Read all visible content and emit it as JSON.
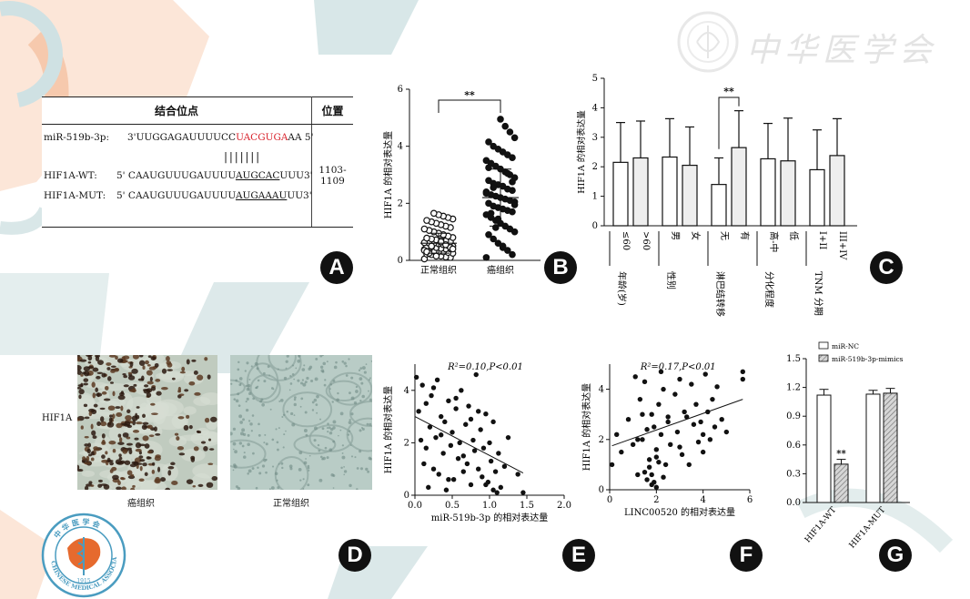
{
  "logo": {
    "seal_text": "中 华 医 学 会",
    "seal_ring": "CHINESE MEDICAL ASSOCIATION",
    "seal_year": "1915",
    "title": "中华医学会"
  },
  "panelA": {
    "badge": "A",
    "header_site": "结合位点",
    "header_pos": "位置",
    "rows": [
      {
        "label": "miR-519b-3p:",
        "pre": "3'UUGGAGAUUUUCC",
        "highlight": "UACGUGA",
        "post": "AA 5'"
      },
      {
        "label": "HIF1A-WT:",
        "pre": "5' CAAUGUUUGAUUUU",
        "highlight": "AUGCAC",
        "post": "UUU3'"
      },
      {
        "label": "HIF1A-MUT:",
        "pre": "5' CAAUGUUUGAUUUU",
        "highlight": "AUGAAAU",
        "post": "UU3'"
      }
    ],
    "pairing": "| | | | | | |",
    "position": "1103-1109"
  },
  "panelB": {
    "badge": "B",
    "sig": "**",
    "ylabel": "HIF1A 的相对表达量"
  },
  "panelC": {
    "badge": "C",
    "sig": "**",
    "ylabel": "HIF1A 的相对表达量",
    "groups": [
      {
        "name": "年龄(岁)",
        "sub": [
          "≤60",
          ">60"
        ]
      },
      {
        "name": "性别",
        "sub": [
          "男",
          "女"
        ]
      },
      {
        "name": "淋巴结转移",
        "sub": [
          "无",
          "有"
        ]
      },
      {
        "name": "分化程度",
        "sub": [
          "高-中",
          "低"
        ]
      },
      {
        "name": "TNM 分期",
        "sub": [
          "I+II",
          "III+IV"
        ]
      }
    ]
  },
  "panelD": {
    "badge": "D",
    "row_label": "HIF1A",
    "captions": [
      "癌组织",
      "正常组织"
    ]
  },
  "panelE": {
    "badge": "E",
    "annot": "R²=0.10,P<0.01",
    "xlabel": "miR-519b-3p 的相对表达量",
    "ylabel": "HIF1A 的相对表达量"
  },
  "panelF": {
    "badge": "F",
    "annot": "R²=0.17,P<0.01",
    "xlabel": "LINC00520 的相对表达量",
    "ylabel": "HIF1A 的相对表达量"
  },
  "panelG": {
    "badge": "G",
    "sig": "**",
    "legend": [
      "miR-NC",
      "miR-519b-3p-mimics"
    ]
  },
  "colors": {
    "bg_orange": "#fbe4d6",
    "bg_teal": "#cfe1e3",
    "highlight_red": "#d8202a",
    "ihc_bg": "#b8c8c2",
    "ihc_stain": "#3a2414"
  },
  "chart_data": [
    {
      "type": "scatter",
      "panel": "B",
      "categories": [
        "正常组织",
        "癌组织"
      ],
      "ylim": [
        0,
        6
      ],
      "yticks": [
        0,
        2,
        4,
        6
      ],
      "means": [
        0.6,
        2.2
      ],
      "sd": [
        0.35,
        1.0
      ],
      "series": [
        {
          "name": "正常组织",
          "values": [
            0.05,
            0.1,
            0.12,
            0.15,
            0.18,
            0.2,
            0.22,
            0.25,
            0.28,
            0.3,
            0.3,
            0.32,
            0.35,
            0.38,
            0.4,
            0.4,
            0.42,
            0.45,
            0.48,
            0.5,
            0.5,
            0.52,
            0.55,
            0.58,
            0.6,
            0.6,
            0.62,
            0.65,
            0.68,
            0.7,
            0.72,
            0.75,
            0.78,
            0.8,
            0.85,
            0.9,
            0.95,
            1.0,
            1.05,
            1.1,
            1.15,
            1.2,
            1.25,
            1.3,
            1.35,
            1.4,
            1.45,
            1.5,
            1.55,
            1.6,
            1.65,
            0.25,
            0.35,
            0.45,
            0.55,
            0.65,
            0.15,
            0.5,
            0.3,
            0.4
          ]
        },
        {
          "name": "癌组织",
          "values": [
            0.1,
            0.2,
            0.35,
            0.5,
            0.6,
            0.75,
            0.9,
            1.0,
            1.1,
            1.2,
            1.3,
            1.4,
            1.5,
            1.6,
            1.7,
            1.75,
            1.8,
            1.85,
            1.9,
            2.0,
            2.05,
            2.1,
            2.15,
            2.2,
            2.25,
            2.3,
            2.4,
            2.45,
            2.5,
            2.6,
            2.65,
            2.7,
            2.8,
            2.9,
            3.0,
            3.1,
            3.2,
            3.3,
            3.4,
            3.5,
            3.6,
            3.7,
            3.8,
            3.9,
            4.0,
            4.15,
            4.3,
            4.5,
            4.7,
            4.95,
            1.15,
            1.65,
            2.35,
            2.75,
            3.05,
            0.45,
            1.45,
            2.55,
            3.25,
            1.95
          ]
        }
      ]
    },
    {
      "type": "bar",
      "panel": "C",
      "ylim": [
        0,
        5
      ],
      "yticks": [
        0,
        1,
        2,
        3,
        4,
        5
      ],
      "categories": [
        "≤60",
        ">60",
        "男",
        "女",
        "无",
        "有",
        "高-中",
        "低",
        "I+II",
        "III+IV"
      ],
      "values": [
        2.15,
        2.3,
        2.33,
        2.05,
        1.4,
        2.65,
        2.27,
        2.2,
        1.9,
        2.38
      ],
      "errors": [
        1.35,
        1.25,
        1.3,
        1.3,
        0.9,
        1.25,
        1.2,
        1.45,
        1.35,
        1.25
      ]
    },
    {
      "type": "scatter",
      "panel": "E",
      "xlim": [
        0,
        2.0
      ],
      "xticks": [
        0.0,
        0.5,
        1.0,
        1.5,
        2.0
      ],
      "ylim": [
        0,
        5
      ],
      "yticks": [
        0,
        2,
        4
      ],
      "annotation": "R²=0.10,P<0.01",
      "fit": {
        "x": [
          0.0,
          1.45
        ],
        "y": [
          3.0,
          0.85
        ]
      },
      "x": [
        0.02,
        0.05,
        0.08,
        0.1,
        0.12,
        0.15,
        0.18,
        0.2,
        0.22,
        0.25,
        0.28,
        0.3,
        0.32,
        0.35,
        0.38,
        0.4,
        0.42,
        0.45,
        0.48,
        0.5,
        0.52,
        0.55,
        0.58,
        0.6,
        0.62,
        0.65,
        0.68,
        0.7,
        0.72,
        0.75,
        0.78,
        0.8,
        0.82,
        0.85,
        0.88,
        0.9,
        0.92,
        0.95,
        0.98,
        1.0,
        1.02,
        1.05,
        1.08,
        1.1,
        1.12,
        1.15,
        1.2,
        1.25,
        1.38,
        1.45,
        0.15,
        0.35,
        0.55,
        0.75,
        0.95,
        0.25,
        0.45,
        0.65,
        0.85,
        1.05
      ],
      "y": [
        4.5,
        3.2,
        2.1,
        4.2,
        1.2,
        3.5,
        0.3,
        2.6,
        3.8,
        1.0,
        2.2,
        4.4,
        0.8,
        3.0,
        1.6,
        2.8,
        0.2,
        3.6,
        1.9,
        2.4,
        0.6,
        3.3,
        1.4,
        2.0,
        4.0,
        0.9,
        2.7,
        1.2,
        3.4,
        0.4,
        2.1,
        1.7,
        4.6,
        1.0,
        2.5,
        0.7,
        1.8,
        3.1,
        0.5,
        2.0,
        1.3,
        2.8,
        0.9,
        0.1,
        1.6,
        0.3,
        1.1,
        2.2,
        0.8,
        0.1,
        1.8,
        2.3,
        3.7,
        2.9,
        0.4,
        4.1,
        0.6,
        1.5,
        3.2,
        0.2
      ]
    },
    {
      "type": "scatter",
      "panel": "F",
      "xlim": [
        0,
        6
      ],
      "xticks": [
        0,
        2,
        4,
        6
      ],
      "ylim": [
        0,
        5
      ],
      "yticks": [
        0,
        2,
        4
      ],
      "annotation": "R²=0.17,P<0.01",
      "fit": {
        "x": [
          0.1,
          5.7
        ],
        "y": [
          1.75,
          3.6
        ]
      },
      "x": [
        0.1,
        0.3,
        0.5,
        0.8,
        1.0,
        1.1,
        1.2,
        1.3,
        1.4,
        1.5,
        1.6,
        1.7,
        1.8,
        1.8,
        1.9,
        2.0,
        2.0,
        2.1,
        2.2,
        2.3,
        2.4,
        2.5,
        2.6,
        2.8,
        2.9,
        3.0,
        3.1,
        3.2,
        3.3,
        3.4,
        3.5,
        3.6,
        3.7,
        3.8,
        3.9,
        4.0,
        4.1,
        4.2,
        4.3,
        4.4,
        4.5,
        4.6,
        4.8,
        5.0,
        5.7,
        5.7,
        1.5,
        1.7,
        1.9,
        2.1,
        2.3,
        1.4,
        1.6,
        2.0,
        2.2,
        1.2,
        3.0,
        4.0,
        2.5,
        1.8
      ],
      "y": [
        1.0,
        2.2,
        1.5,
        2.8,
        1.8,
        4.5,
        0.6,
        3.6,
        2.0,
        4.3,
        0.4,
        1.2,
        3.0,
        0.2,
        2.5,
        1.6,
        0.1,
        3.4,
        2.2,
        4.0,
        1.0,
        2.7,
        1.8,
        3.8,
        2.3,
        4.4,
        1.4,
        3.1,
        2.9,
        1.0,
        4.2,
        2.6,
        3.4,
        1.9,
        2.7,
        2.2,
        4.6,
        3.1,
        2.0,
        3.6,
        2.5,
        4.1,
        2.8,
        2.3,
        4.7,
        4.4,
        0.7,
        0.9,
        0.3,
        1.1,
        0.5,
        3.0,
        2.4,
        1.3,
        4.7,
        2.0,
        1.7,
        1.5,
        2.9,
        0.6
      ]
    },
    {
      "type": "bar",
      "panel": "G",
      "ylim": [
        0,
        1.5
      ],
      "yticks": [
        0.0,
        0.3,
        0.6,
        0.9,
        1.2,
        1.5
      ],
      "categories": [
        "HIF1A-WT",
        "HIF1A-MUT"
      ],
      "series": [
        {
          "name": "miR-NC",
          "values": [
            1.12,
            1.13
          ],
          "errors": [
            0.06,
            0.04
          ]
        },
        {
          "name": "miR-519b-3p-mimics",
          "values": [
            0.4,
            1.14
          ],
          "errors": [
            0.05,
            0.05
          ]
        }
      ]
    }
  ]
}
